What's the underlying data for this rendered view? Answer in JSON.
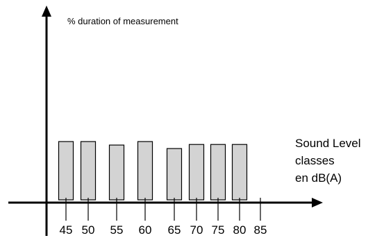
{
  "chart_data": {
    "type": "bar",
    "ylabel": "% duration of measurement",
    "xlabel_lines": [
      "Sound Level",
      "classes",
      "en dB(A)"
    ],
    "tick_labels": [
      "45",
      "50",
      "55",
      "60",
      "65",
      "70",
      "75",
      "80",
      "85"
    ],
    "categories": [
      "45-50",
      "50-55",
      "55-60",
      "60-65",
      "65-70",
      "70-75",
      "75-80",
      "80-85"
    ],
    "bars": [
      {
        "category": "45-50",
        "value": 1.0
      },
      {
        "category": "50-55",
        "value": 1.0
      },
      {
        "category": "55-60",
        "value": 0.94
      },
      {
        "category": "60-65",
        "value": 1.0
      },
      {
        "category": "65-70",
        "value": 0.88
      },
      {
        "category": "70-75",
        "value": 0.95
      },
      {
        "category": "75-80",
        "value": 0.95
      },
      {
        "category": "80-85",
        "value": 0.95
      }
    ],
    "y_axis_numbers_shown": false,
    "grid": false,
    "colors": {
      "bar_fill": "#d3d3d3",
      "bar_stroke": "#000000",
      "axis": "#000000"
    }
  }
}
